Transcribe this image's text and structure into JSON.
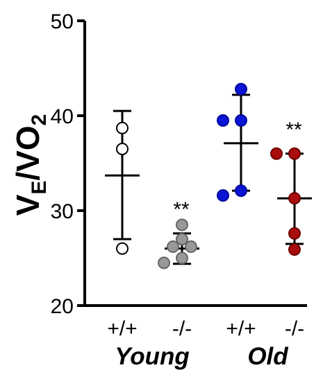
{
  "chart_data": {
    "type": "scatter",
    "ylabel": {
      "main": "V",
      "sub_E": "E",
      "mid": "/VO",
      "sub_2": "2"
    },
    "ylim": [
      20,
      50
    ],
    "yticks": [
      20,
      30,
      40,
      50
    ],
    "grid": false,
    "categories": [
      "+/+",
      "-/-",
      "+/+",
      "-/-"
    ],
    "groups": [
      {
        "label": "Young",
        "categories": [
          0,
          1
        ]
      },
      {
        "label": "Old",
        "categories": [
          2,
          3
        ]
      }
    ],
    "series": [
      {
        "category": 0,
        "points": [
          38.7,
          36.5,
          26.0
        ],
        "mean": 33.7,
        "sd_upper": 40.5,
        "sd_lower": 27.0,
        "fill": "#ffffff",
        "stroke": "#000000",
        "significance": ""
      },
      {
        "category": 1,
        "points": [
          28.5,
          27.0,
          26.2,
          26.2,
          25.0,
          24.5
        ],
        "mean": 26.0,
        "sd_upper": 27.6,
        "sd_lower": 24.4,
        "fill": "#999999",
        "stroke": "#666666",
        "significance": "**"
      },
      {
        "category": 2,
        "points": [
          42.8,
          39.5,
          39.5,
          32.1,
          31.6
        ],
        "mean": 37.1,
        "sd_upper": 42.2,
        "sd_lower": 32.1,
        "fill": "#0a14d6",
        "stroke": "#00089c",
        "significance": ""
      },
      {
        "category": 3,
        "points": [
          36.0,
          36.0,
          31.3,
          27.6,
          25.9
        ],
        "mean": 31.3,
        "sd_upper": 36.0,
        "sd_lower": 26.5,
        "fill": "#aa0c0c",
        "stroke": "#6e0000",
        "significance": "**"
      }
    ]
  }
}
